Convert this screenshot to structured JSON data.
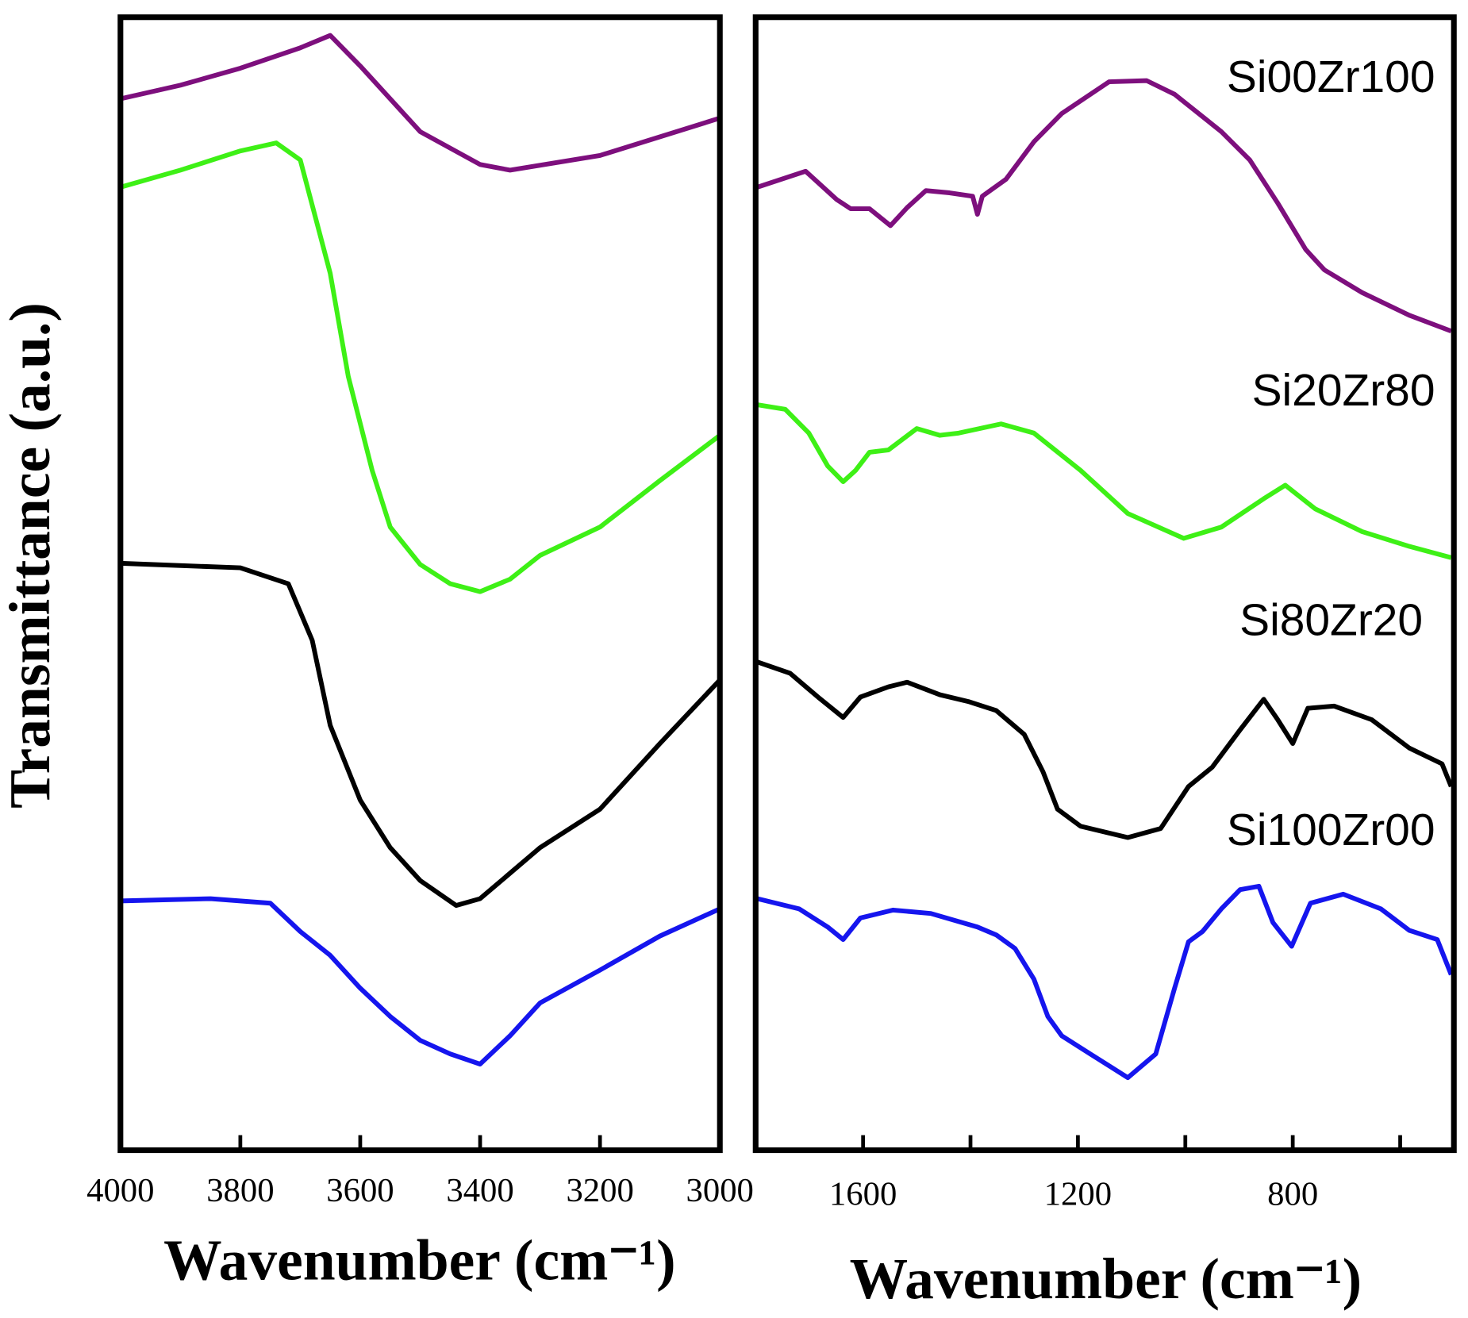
{
  "chart_data": [
    {
      "type": "line",
      "ylabel": "Transmittance (a.u.)",
      "xlabel": "Wavenumber (cm⁻¹)",
      "xlim": [
        4000,
        3000
      ],
      "xticks": [
        4000,
        3800,
        3600,
        3400,
        3200,
        3000
      ],
      "ylim": [
        0,
        100
      ],
      "series": [
        {
          "color": "#7d0f7d",
          "x": [
            4000,
            3900,
            3800,
            3700,
            3650,
            3600,
            3500,
            3400,
            3350,
            3200,
            3000
          ],
          "values": [
            92.8,
            94.0,
            95.5,
            97.3,
            98.4,
            95.7,
            89.9,
            87.0,
            86.5,
            87.8,
            91.1
          ]
        },
        {
          "color": "#3ef016",
          "x": [
            4000,
            3900,
            3800,
            3740,
            3700,
            3650,
            3620,
            3580,
            3550,
            3500,
            3450,
            3400,
            3350,
            3300,
            3200,
            3100,
            3000
          ],
          "values": [
            85.0,
            86.5,
            88.2,
            88.9,
            87.4,
            77.4,
            68.3,
            60.0,
            55.0,
            51.7,
            50.0,
            49.3,
            50.4,
            52.5,
            55.0,
            59.1,
            63.1
          ]
        },
        {
          "color": "#000000",
          "x": [
            4000,
            3800,
            3720,
            3680,
            3650,
            3600,
            3550,
            3500,
            3440,
            3400,
            3300,
            3200,
            3100,
            3000
          ],
          "values": [
            51.8,
            51.4,
            50.0,
            45.0,
            37.5,
            30.9,
            26.7,
            23.8,
            21.6,
            22.2,
            26.7,
            30.1,
            35.9,
            41.5
          ]
        },
        {
          "color": "#1515ee",
          "x": [
            4000,
            3850,
            3750,
            3700,
            3650,
            3600,
            3550,
            3500,
            3450,
            3400,
            3350,
            3300,
            3200,
            3100,
            3000
          ],
          "values": [
            22.0,
            22.2,
            21.8,
            19.3,
            17.2,
            14.3,
            11.8,
            9.7,
            8.5,
            7.6,
            10.1,
            13.0,
            15.9,
            18.9,
            21.3
          ]
        }
      ]
    },
    {
      "type": "line",
      "xlabel": "Wavenumber (cm⁻¹)",
      "xlim": [
        1800,
        500
      ],
      "xticks": [
        1600,
        {
          "value": 1400,
          "label": null
        },
        1200,
        {
          "value": 1000,
          "label": null
        },
        800,
        {
          "value": 600,
          "label": null
        }
      ],
      "ylim": [
        0,
        100
      ],
      "series": [
        {
          "name": "Si00Zr100",
          "color": "#7d0f7d",
          "x": [
            1797,
            1707,
            1649,
            1623,
            1588,
            1549,
            1518,
            1483,
            1439,
            1396,
            1387,
            1378,
            1334,
            1282,
            1230,
            1142,
            1072,
            1020,
            933,
            880,
            828,
            776,
            741,
            671,
            583,
            505
          ],
          "values": [
            85.0,
            86.4,
            83.9,
            83.1,
            83.1,
            81.6,
            83.2,
            84.7,
            84.5,
            84.2,
            82.6,
            84.2,
            85.7,
            89.0,
            91.5,
            94.3,
            94.4,
            93.2,
            89.9,
            87.4,
            83.6,
            79.5,
            77.7,
            75.7,
            73.7,
            72.3
          ]
        },
        {
          "name": "Si20Zr80",
          "color": "#3ef016",
          "x": [
            1797,
            1745,
            1701,
            1666,
            1637,
            1614,
            1588,
            1553,
            1500,
            1457,
            1422,
            1343,
            1282,
            1195,
            1107,
            1003,
            933,
            854,
            814,
            758,
            671,
            583,
            505
          ],
          "values": [
            65.8,
            65.4,
            63.3,
            60.4,
            59.0,
            60.0,
            61.6,
            61.8,
            63.7,
            63.1,
            63.3,
            64.1,
            63.3,
            60.0,
            56.2,
            54.0,
            55.0,
            57.5,
            58.7,
            56.6,
            54.6,
            53.3,
            52.3
          ]
        },
        {
          "name": "Si80Zr20",
          "color": "#000000",
          "x": [
            1797,
            1736,
            1684,
            1637,
            1605,
            1553,
            1518,
            1457,
            1404,
            1352,
            1300,
            1265,
            1238,
            1195,
            1107,
            1046,
            994,
            950,
            898,
            854,
            828,
            800,
            772,
            723,
            653,
            583,
            522,
            505
          ],
          "values": [
            43.1,
            42.1,
            40.0,
            38.2,
            40.0,
            40.9,
            41.3,
            40.2,
            39.6,
            38.8,
            36.7,
            33.4,
            30.1,
            28.6,
            27.6,
            28.4,
            32.1,
            33.8,
            37.1,
            39.8,
            38.0,
            35.9,
            39.0,
            39.2,
            38.0,
            35.5,
            34.1,
            32.1
          ]
        },
        {
          "name": "Si100Zr00",
          "color": "#1515ee",
          "x": [
            1797,
            1719,
            1666,
            1637,
            1605,
            1544,
            1474,
            1387,
            1352,
            1317,
            1282,
            1256,
            1230,
            1177,
            1107,
            1055,
            1020,
            994,
            968,
            933,
            898,
            863,
            837,
            802,
            767,
            706,
            636,
            583,
            531,
            505
          ],
          "values": [
            22.2,
            21.3,
            19.7,
            18.6,
            20.5,
            21.2,
            20.9,
            19.7,
            19.0,
            17.8,
            15.1,
            11.8,
            10.1,
            8.5,
            6.4,
            8.5,
            14.3,
            18.4,
            19.3,
            21.3,
            23.0,
            23.3,
            20.1,
            18.0,
            21.8,
            22.6,
            21.3,
            19.4,
            18.6,
            15.5
          ]
        }
      ]
    }
  ]
}
